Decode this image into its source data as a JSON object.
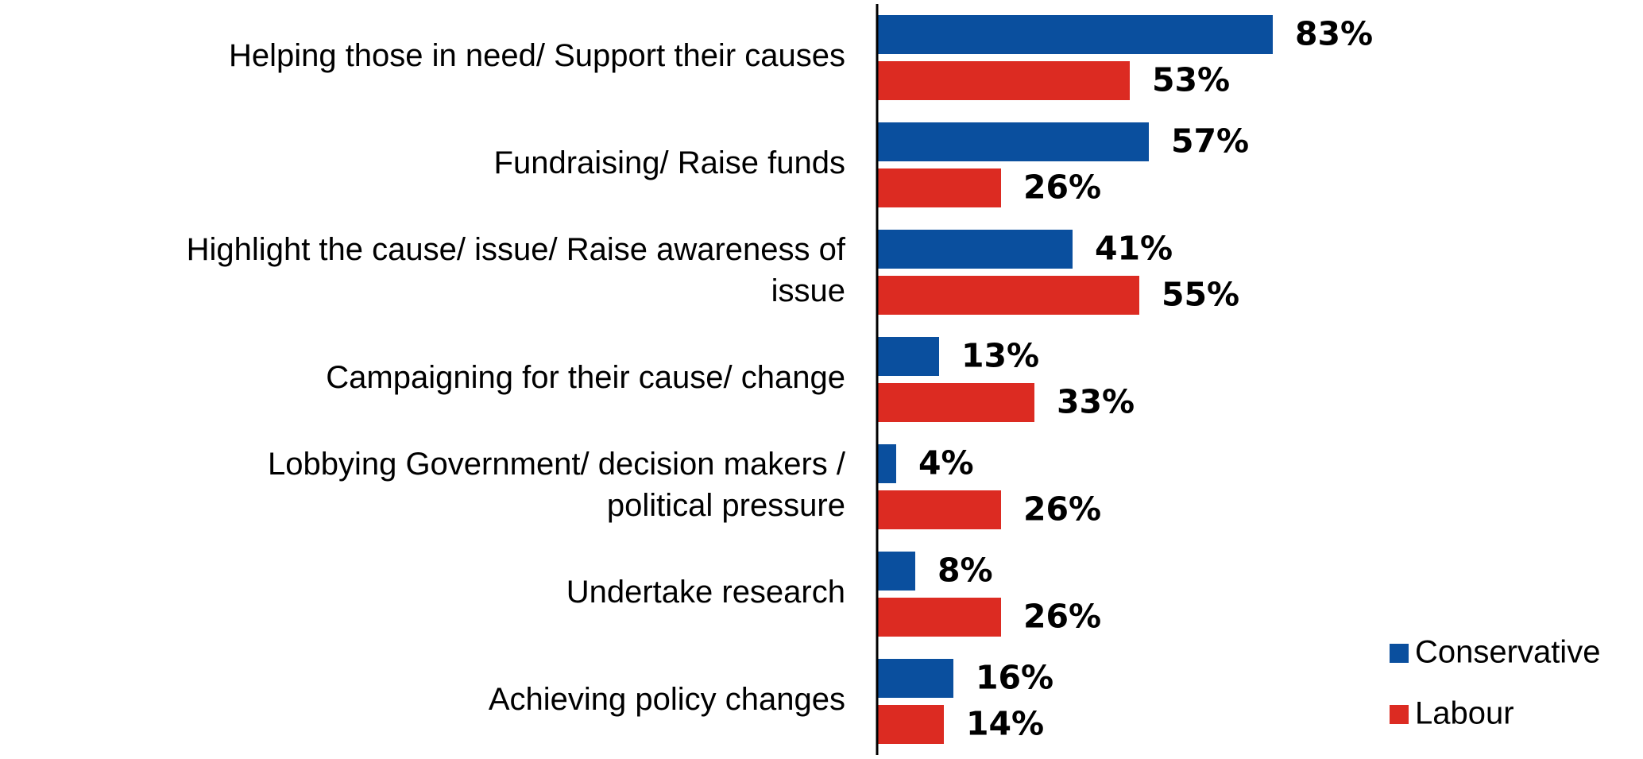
{
  "chart_data": {
    "type": "bar",
    "orientation": "horizontal",
    "categories": [
      [
        "Helping those in need/ Support their causes"
      ],
      [
        "Fundraising/ Raise funds"
      ],
      [
        "Highlight the cause/ issue/ Raise awareness of",
        "issue"
      ],
      [
        "Campaigning for their cause/ change"
      ],
      [
        "Lobbying Government/ decision makers /",
        "political pressure"
      ],
      [
        "Undertake research"
      ],
      [
        "Achieving policy changes"
      ]
    ],
    "series": [
      {
        "name": "Conservative",
        "color": "#0a4f9e",
        "values": [
          83,
          57,
          41,
          13,
          4,
          8,
          16
        ],
        "labels": [
          "83%",
          "57%",
          "41%",
          "13%",
          "4%",
          "8%",
          "16%"
        ]
      },
      {
        "name": "Labour",
        "color": "#dc2b22",
        "values": [
          53,
          26,
          55,
          33,
          26,
          26,
          14
        ],
        "labels": [
          "53%",
          "26%",
          "55%",
          "33%",
          "26%",
          "26%",
          "14%"
        ]
      }
    ],
    "xlim": [
      0,
      100
    ],
    "grid": false,
    "legend": "bottom-right",
    "title": "",
    "xlabel": "",
    "ylabel": ""
  }
}
